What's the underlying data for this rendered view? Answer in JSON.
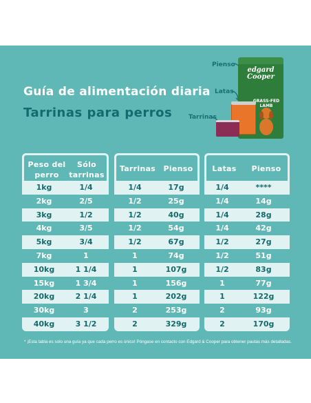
{
  "header": {
    "title": "Guía de alimentación diaria",
    "subtitle": "Tarrinas para perros"
  },
  "products": {
    "pienso_label": "Pienso",
    "latas_label": "Latas",
    "tarrinas_label": "Tarrinas",
    "bag_brand": "edgard Cooper",
    "bag_flavor": "GRASS-FED LAMB"
  },
  "colors": {
    "background": "#5fb8b6",
    "table_bg": "#e0f2f1",
    "dark_text": "#146b6d",
    "white_text": "#ffffff"
  },
  "table1": {
    "headers": [
      "Peso del perro",
      "Sólo tarrinas"
    ],
    "rows": [
      [
        "1kg",
        "1/4"
      ],
      [
        "2kg",
        "2/5"
      ],
      [
        "3kg",
        "1/2"
      ],
      [
        "4kg",
        "3/5"
      ],
      [
        "5kg",
        "3/4"
      ],
      [
        "7kg",
        "1"
      ],
      [
        "10kg",
        "1 1/4"
      ],
      [
        "15kg",
        "1 3/4"
      ],
      [
        "20kg",
        "2 1/4"
      ],
      [
        "30kg",
        "3"
      ],
      [
        "40kg",
        "3 1/2"
      ]
    ]
  },
  "table2": {
    "headers": [
      "Tarrinas",
      "Pienso"
    ],
    "rows": [
      [
        "1/4",
        "17g"
      ],
      [
        "1/2",
        "25g"
      ],
      [
        "1/2",
        "40g"
      ],
      [
        "1/2",
        "54g"
      ],
      [
        "1/2",
        "67g"
      ],
      [
        "1",
        "74g"
      ],
      [
        "1",
        "107g"
      ],
      [
        "1",
        "156g"
      ],
      [
        "1",
        "202g"
      ],
      [
        "2",
        "253g"
      ],
      [
        "2",
        "329g"
      ]
    ]
  },
  "table3": {
    "headers": [
      "Latas",
      "Pienso"
    ],
    "rows": [
      [
        "1/4",
        "****"
      ],
      [
        "1/4",
        "14g"
      ],
      [
        "1/4",
        "28g"
      ],
      [
        "1/4",
        "42g"
      ],
      [
        "1/2",
        "27g"
      ],
      [
        "1/2",
        "51g"
      ],
      [
        "1/2",
        "83g"
      ],
      [
        "1",
        "77g"
      ],
      [
        "1",
        "122g"
      ],
      [
        "2",
        "93g"
      ],
      [
        "2",
        "170g"
      ]
    ]
  },
  "footnote": "* ¡Esta tabla es solo una guía ya que cada perro es único! Póngase en contacto con Edgard & Cooper para obtener pautas más detalladas."
}
